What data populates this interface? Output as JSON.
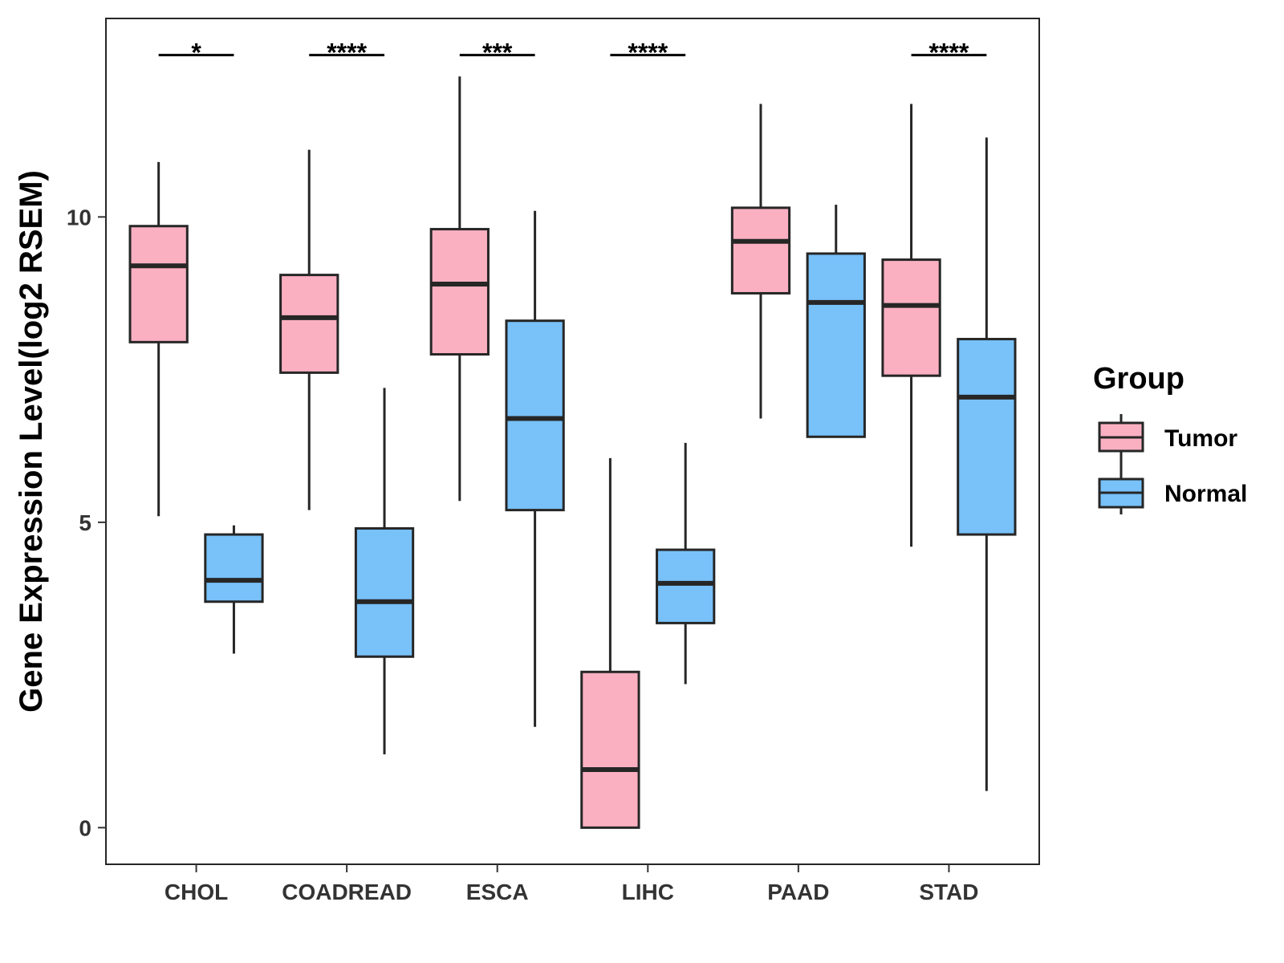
{
  "chart_data": {
    "type": "boxplot",
    "title": "",
    "xlabel": "",
    "ylabel": "Gene Expression Level(log2 RSEM)",
    "ylim": [
      -0.6,
      13.25
    ],
    "yticks": [
      0,
      5,
      10
    ],
    "grid": false,
    "legend": {
      "title": "Group",
      "position": "right",
      "entries": [
        "Tumor",
        "Normal"
      ]
    },
    "colors": {
      "Tumor": "#FBB0C2",
      "Normal": "#78C1F9",
      "stroke": "#262626"
    },
    "categories": [
      "CHOL",
      "COADREAD",
      "ESCA",
      "LIHC",
      "PAAD",
      "STAD"
    ],
    "series": [
      {
        "name": "Tumor",
        "boxes": [
          {
            "min": 5.1,
            "q1": 7.95,
            "median": 9.2,
            "q3": 9.85,
            "max": 10.9
          },
          {
            "min": 5.2,
            "q1": 7.45,
            "median": 8.35,
            "q3": 9.05,
            "max": 11.1
          },
          {
            "min": 5.35,
            "q1": 7.75,
            "median": 8.9,
            "q3": 9.8,
            "max": 12.3
          },
          {
            "min": 0.0,
            "q1": 0.0,
            "median": 0.95,
            "q3": 2.55,
            "max": 6.05
          },
          {
            "min": 6.7,
            "q1": 8.75,
            "median": 9.6,
            "q3": 10.15,
            "max": 11.85
          },
          {
            "min": 4.6,
            "q1": 7.4,
            "median": 8.55,
            "q3": 9.3,
            "max": 11.85
          }
        ]
      },
      {
        "name": "Normal",
        "boxes": [
          {
            "min": 2.85,
            "q1": 3.7,
            "median": 4.05,
            "q3": 4.8,
            "max": 4.95
          },
          {
            "min": 1.2,
            "q1": 2.8,
            "median": 3.7,
            "q3": 4.9,
            "max": 7.2
          },
          {
            "min": 1.65,
            "q1": 5.2,
            "median": 6.7,
            "q3": 8.3,
            "max": 10.1
          },
          {
            "min": 2.35,
            "q1": 3.35,
            "median": 4.0,
            "q3": 4.55,
            "max": 6.3
          },
          {
            "min": 6.4,
            "q1": 6.4,
            "median": 8.6,
            "q3": 9.4,
            "max": 10.2
          },
          {
            "min": 0.6,
            "q1": 4.8,
            "median": 7.05,
            "q3": 8.0,
            "max": 11.3
          }
        ]
      }
    ],
    "significance": [
      {
        "category": "CHOL",
        "label": "*"
      },
      {
        "category": "COADREAD",
        "label": "****"
      },
      {
        "category": "ESCA",
        "label": "***"
      },
      {
        "category": "LIHC",
        "label": "****"
      },
      {
        "category": "PAAD",
        "label": ""
      },
      {
        "category": "STAD",
        "label": "****"
      }
    ],
    "significance_y": 12.65
  }
}
